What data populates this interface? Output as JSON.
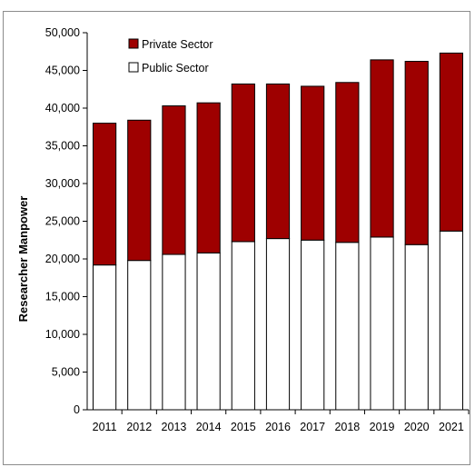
{
  "header": {
    "title_fragment": ""
  },
  "colors": {
    "private": "#9e0000",
    "public": "#ffffff",
    "title": "#c00000"
  },
  "chart_data": {
    "type": "bar",
    "stacked": true,
    "categories": [
      "2011",
      "2012",
      "2013",
      "2014",
      "2015",
      "2016",
      "2017",
      "2018",
      "2019",
      "2020",
      "2021"
    ],
    "series": [
      {
        "name": "Public Sector",
        "values": [
          19200,
          19800,
          20600,
          20800,
          22300,
          22700,
          22500,
          22200,
          22900,
          21900,
          23700
        ]
      },
      {
        "name": "Private Sector",
        "values": [
          18800,
          18600,
          19700,
          19900,
          20900,
          20500,
          20400,
          21200,
          23500,
          24300,
          23600
        ]
      }
    ],
    "totals": [
      38000,
      38400,
      40300,
      40700,
      43200,
      43200,
      42900,
      43400,
      46400,
      46200,
      47300
    ],
    "ylabel": "Researcher Manpower",
    "xlabel": "",
    "ylim": [
      0,
      50000
    ],
    "yticks": [
      "0",
      "5,000",
      "10,000",
      "15,000",
      "20,000",
      "25,000",
      "30,000",
      "35,000",
      "40,000",
      "45,000",
      "50,000"
    ],
    "legend": {
      "placement": "top-left",
      "entries": [
        "Private Sector",
        "Public Sector"
      ]
    },
    "grid": false
  }
}
